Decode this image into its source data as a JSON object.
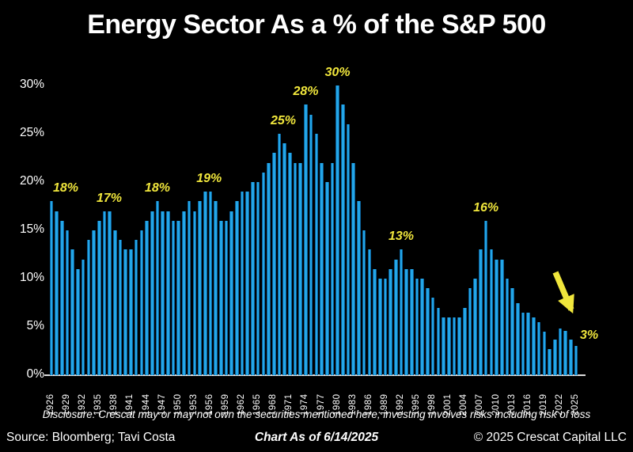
{
  "title": "Energy Sector As a % of the S&P 500",
  "footer": {
    "disclosure": "Disclosure: Crescat may or may not own the securities mentioned here; investing involves risks including risk of loss",
    "source": "Source: Bloomberg; Tavi Costa",
    "as_of": "Chart As of 6/14/2025",
    "copyright": "© 2025 Crescat Capital LLC"
  },
  "colors": {
    "background": "#000000",
    "bar": "#24a7e8",
    "bar_edge": "#0b5e96",
    "annotation_yellow": "#f0e63c",
    "text": "#ffffff",
    "axis_line": "#dcdcdc"
  },
  "chart_data": {
    "type": "bar",
    "title": "Energy Sector As a % of the S&P 500",
    "xlabel": "",
    "ylabel": "",
    "ylim": [
      0,
      30
    ],
    "grid": false,
    "legend_position": "none",
    "x_start": 1926,
    "x_step": 1,
    "x_end": 2025,
    "y_tick_labels": [
      "0%",
      "5%",
      "10%",
      "15%",
      "20%",
      "25%",
      "30%"
    ],
    "x_tick_years": [
      1926,
      1929,
      1932,
      1935,
      1938,
      1941,
      1944,
      1947,
      1950,
      1953,
      1956,
      1959,
      1962,
      1965,
      1968,
      1971,
      1974,
      1977,
      1980,
      1983,
      1986,
      1989,
      1992,
      1995,
      1998,
      2001,
      2004,
      2007,
      2010,
      2013,
      2016,
      2019,
      2022,
      2025
    ],
    "series": [
      {
        "name": "Energy sector weight of S&P 500 (%)",
        "values": [
          18,
          17,
          16,
          15,
          13,
          11,
          12,
          14,
          15,
          16,
          17,
          17,
          15,
          14,
          13,
          13,
          14,
          15,
          16,
          17,
          18,
          17,
          17,
          16,
          16,
          17,
          18,
          17,
          18,
          19,
          19,
          18,
          16,
          16,
          17,
          18,
          19,
          19,
          20,
          20,
          21,
          22,
          23,
          25,
          24,
          23,
          22,
          22,
          28,
          27,
          25,
          22,
          20,
          22,
          30,
          28,
          26,
          22,
          18,
          15,
          13,
          11,
          10,
          10,
          11,
          12,
          13,
          11,
          11,
          10,
          10,
          9,
          8,
          7,
          6,
          6,
          6,
          6,
          7,
          9,
          10,
          13,
          16,
          13,
          12,
          12,
          10,
          9,
          7.5,
          6.5,
          6.5,
          6,
          5.5,
          4.5,
          2.7,
          3.7,
          4.8,
          4.6,
          3.7,
          3
        ]
      }
    ],
    "annotations": [
      {
        "label": "18%",
        "year": 1926,
        "value": 18,
        "dx": 18
      },
      {
        "label": "17%",
        "year": 1936,
        "value": 17,
        "dx": 6
      },
      {
        "label": "18%",
        "year": 1946,
        "value": 18,
        "dx": 0
      },
      {
        "label": "19%",
        "year": 1955,
        "value": 19,
        "dx": 5
      },
      {
        "label": "25%",
        "year": 1969,
        "value": 25,
        "dx": 5
      },
      {
        "label": "28%",
        "year": 1974,
        "value": 28,
        "dx": 0
      },
      {
        "label": "30%",
        "year": 1980,
        "value": 30,
        "dx": 0
      },
      {
        "label": "13%",
        "year": 1992,
        "value": 13,
        "dx": 0
      },
      {
        "label": "16%",
        "year": 2008,
        "value": 16,
        "dx": 0
      },
      {
        "label": "3%",
        "year": 2025,
        "value": 3,
        "placement": "right"
      }
    ],
    "arrow": {
      "points_to_year": 2025,
      "direction": "down-right"
    }
  }
}
